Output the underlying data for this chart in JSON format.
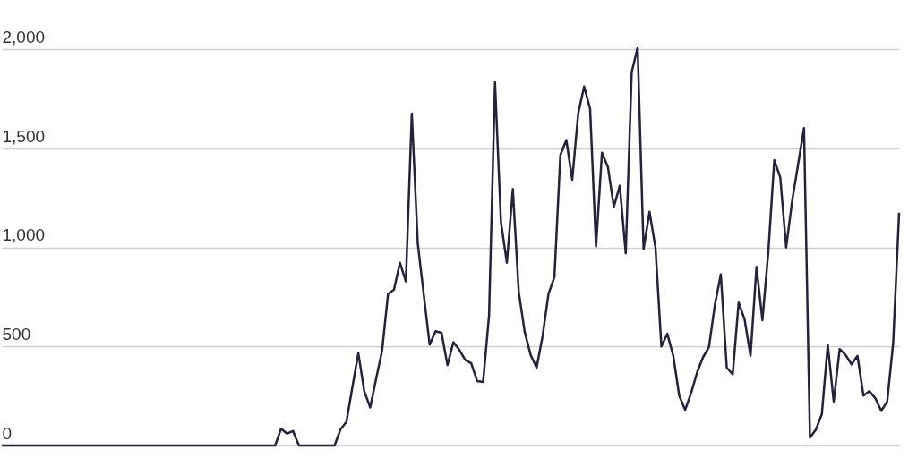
{
  "chart_data": {
    "type": "line",
    "categories": [
      null,
      null,
      null,
      null,
      null,
      null,
      null,
      null,
      null,
      null,
      null,
      null,
      null,
      null,
      null,
      null,
      null,
      null,
      null,
      null,
      null,
      null,
      null,
      null,
      null,
      null,
      null,
      null,
      null,
      null,
      null,
      null,
      null,
      null,
      null,
      null,
      null,
      null,
      null,
      null,
      null,
      null,
      null,
      null,
      null,
      null,
      null,
      null,
      null,
      null,
      null,
      null,
      null,
      null,
      null,
      null,
      null,
      null,
      null,
      null,
      null,
      null,
      null,
      null,
      null,
      null,
      null,
      null,
      null,
      null,
      null,
      null,
      null,
      null,
      null,
      null,
      null,
      null,
      null,
      null,
      null,
      null,
      null,
      null,
      null,
      null,
      null,
      null,
      null,
      null,
      null,
      null,
      null,
      null,
      null,
      null,
      null,
      null,
      null,
      null,
      null,
      null,
      null,
      null,
      null,
      null,
      null,
      null,
      null,
      null,
      null,
      null,
      null,
      null,
      null,
      null,
      null,
      null,
      null,
      null,
      null,
      null,
      null,
      null,
      null,
      null,
      null,
      null,
      null,
      null,
      null,
      null,
      null,
      null,
      null,
      null,
      null,
      null,
      null,
      null,
      null,
      null,
      null,
      null,
      null,
      null,
      null,
      null,
      null,
      null,
      null,
      null
    ],
    "series": [
      {
        "color": "#25223e",
        "values": [
          0,
          0,
          0,
          0,
          0,
          0,
          0,
          0,
          0,
          0,
          0,
          0,
          0,
          0,
          0,
          0,
          0,
          0,
          0,
          0,
          0,
          0,
          0,
          0,
          0,
          0,
          0,
          0,
          0,
          0,
          0,
          0,
          0,
          0,
          0,
          0,
          0,
          0,
          0,
          0,
          0,
          0,
          0,
          0,
          0,
          0,
          0,
          85,
          60,
          73,
          0,
          0,
          0,
          0,
          0,
          0,
          0,
          81,
          120,
          295,
          466,
          274,
          192,
          338,
          479,
          765,
          787,
          923,
          829,
          1676,
          1022,
          765,
          509,
          577,
          569,
          406,
          522,
          483,
          432,
          415,
          325,
          321,
          658,
          1834,
          1129,
          923,
          1295,
          774,
          573,
          457,
          393,
          551,
          765,
          851,
          1466,
          1543,
          1342,
          1676,
          1813,
          1701,
          1005,
          1479,
          1406,
          1206,
          1312,
          970,
          1885,
          2010,
          992,
          1180,
          1000,
          500,
          564,
          453,
          252,
          180,
          265,
          368,
          445,
          496,
          710,
          864,
          393,
          359,
          722,
          637,
          453,
          902,
          633,
          980,
          1441,
          1355,
          1000,
          1235,
          1419,
          1603,
          40,
          80,
          158,
          509,
          222,
          487,
          457,
          410,
          453,
          252,
          274,
          239,
          175,
          222,
          517,
          1176
        ]
      }
    ],
    "ylim": [
      0,
      2250
    ],
    "yticks": [
      0,
      500,
      {
        "value": 1000,
        "label": "1,000"
      },
      {
        "value": 1500,
        "label": "1,500"
      },
      {
        "value": 2000,
        "label": "2,000"
      }
    ],
    "grid": "y",
    "tick_labels": "y",
    "marker": "none",
    "line_style": "solid"
  }
}
